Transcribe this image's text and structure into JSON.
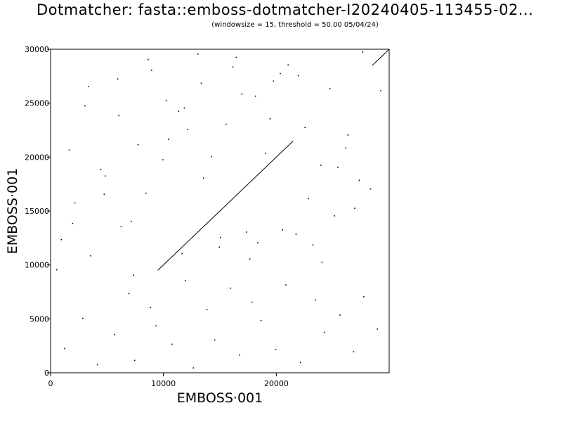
{
  "chart_data": {
    "type": "scatter",
    "title": "Dotmatcher: fasta::emboss-dotmatcher-I20240405-113455-02...",
    "subtitle": "(windowsize = 15, threshold = 50.00  05/04/24)",
    "xlabel": "EMBOSS·001",
    "ylabel": "EMBOSS·001",
    "xlim": [
      0,
      30000
    ],
    "ylim": [
      0,
      30000
    ],
    "xticks": [
      0,
      10000,
      20000
    ],
    "xtick_labels": [
      "0",
      "10000",
      "20000"
    ],
    "yticks": [
      0,
      5000,
      10000,
      15000,
      20000,
      25000,
      30000
    ],
    "ytick_labels": [
      "0",
      "5000",
      "10000",
      "15000",
      "20000",
      "25000",
      "30000"
    ],
    "grid": false,
    "series": [
      {
        "kind": "diagonal-match",
        "x": [
          9500,
          21500
        ],
        "y": [
          9500,
          21500
        ]
      },
      {
        "kind": "diagonal-match",
        "x": [
          28500,
          30000
        ],
        "y": [
          28500,
          30000
        ]
      },
      {
        "kind": "scattered-matches",
        "x": [
          1200,
          2800,
          4100,
          5600,
          6900,
          7400,
          8800,
          9300,
          10700,
          11900,
          12600,
          13800,
          14500,
          15900,
          16700,
          17800,
          18600,
          19900,
          20800,
          22100,
          23400,
          24200,
          25600,
          26800,
          27700,
          28900,
          900,
          2100,
          3500,
          4800,
          6200,
          7700,
          8400,
          9900,
          11300,
          12100,
          13300,
          14900,
          16100,
          17300,
          18100,
          19400,
          20300,
          21700,
          22800,
          23900,
          25100,
          26300,
          27300,
          29200,
          1600,
          3000,
          4400,
          5900,
          7100,
          8600,
          10200,
          11600,
          13000,
          14200,
          15500,
          16900,
          18300,
          19700,
          21000,
          22500,
          24000,
          25400,
          26900,
          28300,
          500,
          1900,
          3300,
          4700,
          6000,
          7300,
          8900,
          10400,
          11800,
          13500,
          15000,
          16400,
          17600,
          19000,
          20500,
          21900,
          23200,
          24700,
          26100,
          27600
        ],
        "y": [
          2300,
          5100,
          800,
          3600,
          7400,
          1200,
          6100,
          4400,
          2700,
          8600,
          500,
          5900,
          3100,
          7900,
          1700,
          6600,
          4900,
          2200,
          8200,
          1000,
          6800,
          3800,
          5400,
          2000,
          7100,
          4100,
          12400,
          15800,
          10900,
          18300,
          13600,
          21200,
          16700,
          19800,
          24300,
          22600,
          26900,
          11700,
          28400,
          13100,
          25700,
          23600,
          27800,
          12900,
          16200,
          19300,
          14600,
          22100,
          17900,
          26200,
          20700,
          24800,
          18900,
          27300,
          14100,
          29100,
          25300,
          11100,
          29600,
          20100,
          23100,
          25900,
          12100,
          27100,
          28600,
          22800,
          10300,
          19100,
          15300,
          17100,
          9600,
          13900,
          26600,
          16600,
          23900,
          9100,
          28100,
          21700,
          24600,
          18100,
          12600,
          29300,
          10600,
          20400,
          13300,
          27600,
          11900,
          26400,
          20900,
          29800
        ]
      }
    ]
  }
}
